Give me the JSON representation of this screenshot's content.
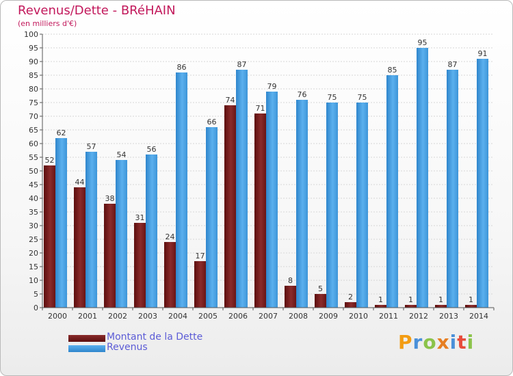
{
  "chart_data": {
    "type": "bar",
    "title": "Revenus/Dette - BRéHAIN",
    "subtitle": "(en milliers d'€)",
    "categories": [
      "2000",
      "2001",
      "2002",
      "2003",
      "2004",
      "2005",
      "2006",
      "2007",
      "2008",
      "2009",
      "2010",
      "2011",
      "2012",
      "2013",
      "2014"
    ],
    "series": [
      {
        "name": "Montant de la Dette",
        "color": "#7a1a1a",
        "values": [
          52,
          44,
          38,
          31,
          24,
          17,
          74,
          71,
          8,
          5,
          2,
          1,
          1,
          1,
          1
        ]
      },
      {
        "name": "Revenus",
        "color": "#4a9fe0",
        "values": [
          62,
          57,
          54,
          56,
          86,
          66,
          87,
          79,
          76,
          75,
          75,
          85,
          95,
          87,
          91
        ]
      }
    ],
    "ylim": [
      0,
      100
    ],
    "ytick_step": 5,
    "grid": true,
    "legend_position": "bottom-left"
  },
  "brand": {
    "logo_text": "Proxiti",
    "letter_colors": [
      "#f39c12",
      "#4a90d9",
      "#8bc34a",
      "#e67e22",
      "#4a90d9",
      "#e74c3c",
      "#8bc34a"
    ]
  }
}
